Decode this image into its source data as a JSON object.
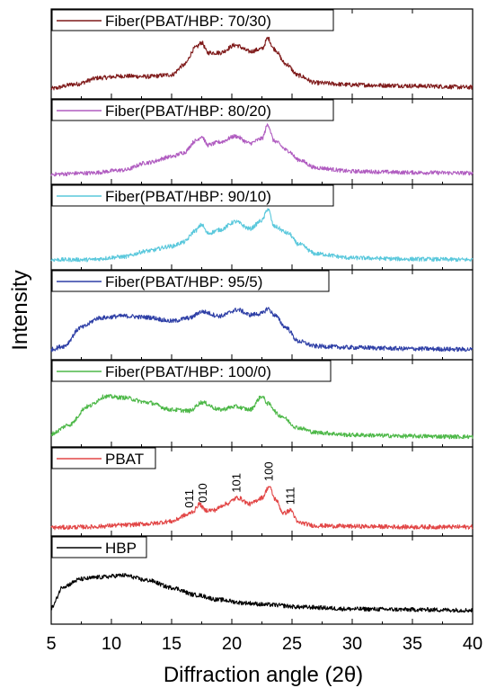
{
  "chart_data": {
    "type": "line",
    "title": "",
    "xlabel": "Diffraction angle (2θ)",
    "ylabel": "Intensity",
    "xlim": [
      5,
      40
    ],
    "x_ticks": [
      5,
      10,
      15,
      20,
      25,
      30,
      35,
      40
    ],
    "legend_placement": "top-left of each panel",
    "grid": false,
    "series": [
      {
        "name": "Fiber(PBAT/HBP: 70/30)",
        "color": "#7f1a1a",
        "x": [
          5,
          7,
          9,
          11,
          13,
          15,
          16,
          17,
          17.5,
          18,
          19,
          20.3,
          21.5,
          22.5,
          23,
          23.5,
          24.5,
          25.5,
          27,
          30,
          33,
          36,
          40
        ],
        "y": [
          0.05,
          0.12,
          0.22,
          0.25,
          0.24,
          0.27,
          0.42,
          0.7,
          0.78,
          0.62,
          0.62,
          0.74,
          0.64,
          0.68,
          0.85,
          0.68,
          0.44,
          0.26,
          0.14,
          0.11,
          0.1,
          0.09,
          0.07
        ]
      },
      {
        "name": "Fiber(PBAT/HBP: 80/20)",
        "color": "#b05cc0",
        "x": [
          5,
          8,
          11,
          13,
          15,
          16,
          17,
          17.5,
          18,
          19,
          20.3,
          21.5,
          22.5,
          23,
          23.5,
          24.7,
          25.5,
          27,
          30,
          35,
          40
        ],
        "y": [
          0.05,
          0.07,
          0.12,
          0.25,
          0.35,
          0.42,
          0.62,
          0.7,
          0.55,
          0.6,
          0.7,
          0.58,
          0.66,
          0.9,
          0.62,
          0.45,
          0.3,
          0.16,
          0.1,
          0.08,
          0.07
        ]
      },
      {
        "name": "Fiber(PBAT/HBP: 90/10)",
        "color": "#5ac8dc",
        "x": [
          5,
          8,
          11,
          13,
          15,
          16,
          17,
          17.5,
          18,
          19,
          20.3,
          21.5,
          22.5,
          23,
          23.5,
          24.7,
          25.5,
          27,
          30,
          35,
          40
        ],
        "y": [
          0.05,
          0.05,
          0.1,
          0.2,
          0.28,
          0.35,
          0.55,
          0.65,
          0.5,
          0.56,
          0.7,
          0.58,
          0.72,
          0.92,
          0.62,
          0.5,
          0.32,
          0.15,
          0.08,
          0.06,
          0.05
        ]
      },
      {
        "name": "Fiber(PBAT/HBP: 95/5)",
        "color": "#2e3fa6",
        "x": [
          5,
          6,
          7.5,
          9,
          11,
          13,
          15,
          16.5,
          17.5,
          19,
          20.5,
          21.5,
          22.5,
          23,
          23.5,
          24.5,
          25.5,
          27,
          30,
          35,
          40
        ],
        "y": [
          0.05,
          0.1,
          0.4,
          0.55,
          0.58,
          0.56,
          0.5,
          0.55,
          0.65,
          0.58,
          0.68,
          0.6,
          0.62,
          0.7,
          0.6,
          0.4,
          0.18,
          0.1,
          0.08,
          0.06,
          0.05
        ]
      },
      {
        "name": "Fiber(PBAT/HBP: 100/0)",
        "color": "#4db848",
        "x": [
          5,
          6.5,
          8,
          9.5,
          11,
          13,
          15,
          16.5,
          17.5,
          19,
          20.3,
          21.5,
          22.5,
          23,
          24,
          25.5,
          27,
          30,
          35,
          40
        ],
        "y": [
          0.1,
          0.25,
          0.55,
          0.72,
          0.7,
          0.62,
          0.5,
          0.48,
          0.62,
          0.5,
          0.55,
          0.5,
          0.72,
          0.6,
          0.4,
          0.2,
          0.12,
          0.08,
          0.06,
          0.05
        ]
      },
      {
        "name": "PBAT",
        "color": "#e24646",
        "x": [
          5,
          8,
          11,
          13,
          15,
          16.2,
          16.8,
          17.3,
          17.8,
          18.5,
          19.5,
          20.5,
          21.5,
          22.5,
          23.1,
          23.6,
          24.3,
          24.9,
          25.5,
          27,
          30,
          35,
          40
        ],
        "y": [
          0.02,
          0.03,
          0.06,
          0.08,
          0.12,
          0.22,
          0.28,
          0.4,
          0.3,
          0.3,
          0.4,
          0.5,
          0.4,
          0.5,
          0.68,
          0.48,
          0.25,
          0.3,
          0.1,
          0.05,
          0.04,
          0.03,
          0.03
        ]
      },
      {
        "name": "HBP",
        "color": "#000000",
        "x": [
          5,
          6,
          7.5,
          9,
          11,
          13,
          15,
          17,
          19,
          21,
          23,
          26,
          30,
          35,
          40
        ],
        "y": [
          0.15,
          0.5,
          0.62,
          0.65,
          0.68,
          0.6,
          0.48,
          0.36,
          0.28,
          0.23,
          0.2,
          0.16,
          0.13,
          0.12,
          0.11
        ]
      }
    ],
    "annotations": [
      {
        "label": "011",
        "x": 16.5,
        "series": "PBAT"
      },
      {
        "label": "010",
        "x": 17.6,
        "series": "PBAT"
      },
      {
        "label": "101",
        "x": 20.4,
        "series": "PBAT"
      },
      {
        "label": "100",
        "x": 23.1,
        "series": "PBAT"
      },
      {
        "label": "111",
        "x": 24.9,
        "series": "PBAT"
      }
    ]
  }
}
